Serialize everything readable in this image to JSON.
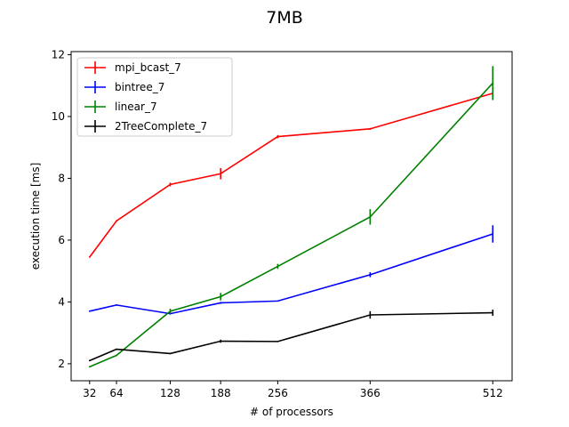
{
  "chart_data": {
    "type": "line",
    "title": "7MB",
    "xlabel": "# of processors",
    "ylabel": "execution time [ms]",
    "x": [
      32,
      64,
      128,
      188,
      256,
      366,
      512
    ],
    "xlim": [
      10,
      535
    ],
    "ylim": [
      1.45,
      12.1
    ],
    "xticks": [
      32,
      64,
      128,
      188,
      256,
      366,
      512
    ],
    "yticks": [
      2,
      4,
      6,
      8,
      10,
      12
    ],
    "grid": false,
    "legend_position": "top-left",
    "series": [
      {
        "name": "mpi_bcast_7",
        "color": "#ff0000",
        "values": [
          5.45,
          6.62,
          7.8,
          8.15,
          9.35,
          9.6,
          10.75
        ],
        "errors": [
          0.02,
          0.02,
          0.06,
          0.18,
          0.05,
          0.03,
          0.15
        ]
      },
      {
        "name": "bintree_7",
        "color": "#0000ff",
        "values": [
          3.7,
          3.9,
          3.62,
          3.97,
          4.03,
          4.88,
          6.2
        ],
        "errors": [
          0.02,
          0.02,
          0.03,
          0.03,
          0.02,
          0.08,
          0.28
        ]
      },
      {
        "name": "linear_7",
        "color": "#008000",
        "values": [
          1.9,
          2.27,
          3.7,
          4.17,
          5.15,
          6.75,
          11.08
        ],
        "errors": [
          0.02,
          0.02,
          0.08,
          0.12,
          0.08,
          0.25,
          0.55
        ]
      },
      {
        "name": "2TreeComplete_7",
        "color": "#000000",
        "values": [
          2.1,
          2.47,
          2.33,
          2.73,
          2.72,
          3.58,
          3.65
        ],
        "errors": [
          0.02,
          0.02,
          0.02,
          0.05,
          0.02,
          0.12,
          0.1
        ]
      }
    ]
  }
}
